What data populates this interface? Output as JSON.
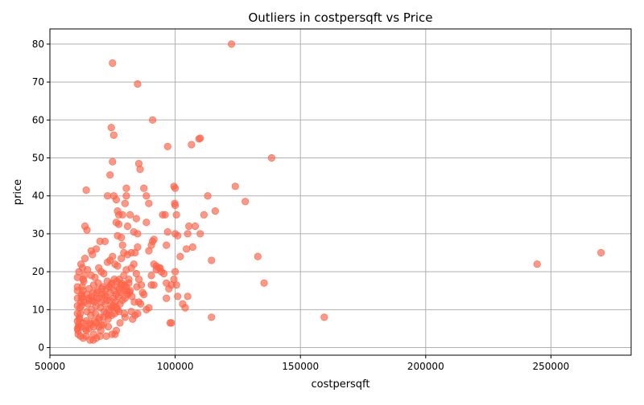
{
  "chart_data": {
    "type": "scatter",
    "title": "Outliers in costpersqft vs Price",
    "xlabel": "costpersqft",
    "ylabel": "price",
    "xlim": [
      50000,
      282000
    ],
    "ylim": [
      -2,
      84
    ],
    "xticks": [
      50000,
      100000,
      150000,
      200000,
      250000
    ],
    "yticks": [
      0,
      10,
      20,
      30,
      40,
      50,
      60,
      70,
      80
    ],
    "grid": true,
    "point_color": "#ff6347",
    "series": [
      {
        "points": [
          [
            61200,
            4.5
          ],
          [
            61500,
            6.0
          ],
          [
            61800,
            8.0
          ],
          [
            62000,
            10.5
          ],
          [
            62300,
            12.0
          ],
          [
            62600,
            14.0
          ],
          [
            62900,
            16.0
          ],
          [
            63200,
            18.0
          ],
          [
            61400,
            5.5
          ],
          [
            61700,
            7.5
          ],
          [
            62100,
            9.0
          ],
          [
            62500,
            11.0
          ],
          [
            62800,
            13.5
          ],
          [
            63100,
            15.0
          ],
          [
            63500,
            17.5
          ],
          [
            63800,
            19.0
          ],
          [
            64200,
            5.0
          ],
          [
            64500,
            7.0
          ],
          [
            64800,
            9.5
          ],
          [
            65100,
            11.5
          ],
          [
            65400,
            13.0
          ],
          [
            65700,
            15.5
          ],
          [
            66000,
            6.5
          ],
          [
            66300,
            8.5
          ],
          [
            66600,
            10.0
          ],
          [
            66900,
            12.5
          ],
          [
            67200,
            14.5
          ],
          [
            67500,
            16.5
          ],
          [
            67800,
            7.0
          ],
          [
            68100,
            9.0
          ],
          [
            68400,
            11.0
          ],
          [
            68700,
            13.0
          ],
          [
            69000,
            15.0
          ],
          [
            69300,
            17.0
          ],
          [
            69600,
            5.5
          ],
          [
            69900,
            8.0
          ],
          [
            70200,
            10.5
          ],
          [
            70500,
            12.0
          ],
          [
            70800,
            14.0
          ],
          [
            71100,
            16.0
          ],
          [
            71400,
            6.0
          ],
          [
            71700,
            9.5
          ],
          [
            72000,
            11.5
          ],
          [
            72300,
            13.5
          ],
          [
            72600,
            15.5
          ],
          [
            72900,
            17.5
          ],
          [
            73200,
            7.5
          ],
          [
            73500,
            10.0
          ],
          [
            73800,
            12.5
          ],
          [
            74100,
            14.5
          ],
          [
            74400,
            16.5
          ],
          [
            74700,
            8.5
          ],
          [
            75000,
            11.0
          ],
          [
            75300,
            13.0
          ],
          [
            75600,
            15.0
          ],
          [
            75900,
            9.0
          ],
          [
            76200,
            12.0
          ],
          [
            76500,
            14.0
          ],
          [
            76800,
            16.0
          ],
          [
            77100,
            10.0
          ],
          [
            77400,
            13.5
          ],
          [
            77700,
            15.5
          ],
          [
            78000,
            11.5
          ],
          [
            78300,
            14.5
          ],
          [
            78600,
            16.5
          ],
          [
            79000,
            12.5
          ],
          [
            79500,
            15.0
          ],
          [
            80000,
            13.0
          ],
          [
            80500,
            16.0
          ],
          [
            81000,
            14.0
          ],
          [
            81500,
            17.0
          ],
          [
            82000,
            15.0
          ],
          [
            61300,
            3.5
          ],
          [
            62200,
            3.0
          ],
          [
            63300,
            2.5
          ],
          [
            64500,
            3.0
          ],
          [
            66000,
            2.0
          ],
          [
            67500,
            3.5
          ],
          [
            68500,
            2.5
          ],
          [
            70000,
            3.0
          ],
          [
            72500,
            3.0
          ],
          [
            74800,
            3.5
          ],
          [
            76500,
            4.5
          ],
          [
            78000,
            6.5
          ],
          [
            80000,
            8.0
          ],
          [
            82500,
            9.5
          ],
          [
            84000,
            8.5
          ],
          [
            85500,
            12.0
          ],
          [
            61600,
            20.0
          ],
          [
            62400,
            22.0
          ],
          [
            63000,
            21.0
          ],
          [
            64000,
            23.5
          ],
          [
            65000,
            20.5
          ],
          [
            66500,
            19.0
          ],
          [
            67000,
            24.5
          ],
          [
            68000,
            18.5
          ],
          [
            69500,
            21.0
          ],
          [
            70500,
            20.0
          ],
          [
            71500,
            19.5
          ],
          [
            73000,
            22.5
          ],
          [
            74000,
            23.0
          ],
          [
            75000,
            24.0
          ],
          [
            76000,
            22.0
          ],
          [
            77000,
            21.5
          ],
          [
            78500,
            23.5
          ],
          [
            79500,
            19.0
          ],
          [
            80500,
            20.5
          ],
          [
            81500,
            18.0
          ],
          [
            82500,
            21.0
          ],
          [
            83500,
            22.0
          ],
          [
            84500,
            19.5
          ],
          [
            85500,
            18.0
          ],
          [
            86500,
            16.5
          ],
          [
            87500,
            14.0
          ],
          [
            88500,
            10.0
          ],
          [
            89500,
            10.5
          ],
          [
            90500,
            16.5
          ],
          [
            91500,
            16.5
          ],
          [
            92500,
            20.5
          ],
          [
            93500,
            21.0
          ],
          [
            94500,
            20.0
          ],
          [
            95500,
            19.5
          ],
          [
            96500,
            17.0
          ],
          [
            97500,
            15.5
          ],
          [
            98500,
            16.5
          ],
          [
            99500,
            18.0
          ],
          [
            100000,
            20.0
          ],
          [
            100500,
            16.5
          ],
          [
            101000,
            13.5
          ],
          [
            103000,
            11.5
          ],
          [
            104000,
            10.5
          ],
          [
            105000,
            13.5
          ],
          [
            96500,
            13.0
          ],
          [
            98000,
            6.5
          ],
          [
            98500,
            6.5
          ],
          [
            114500,
            8.0
          ],
          [
            159500,
            8.0
          ],
          [
            64500,
            41.5
          ],
          [
            72000,
            28.0
          ],
          [
            70000,
            28.0
          ],
          [
            68500,
            26.0
          ],
          [
            64800,
            31.0
          ],
          [
            64000,
            32.0
          ],
          [
            66500,
            25.5
          ],
          [
            74000,
            45.5
          ],
          [
            74500,
            58.0
          ],
          [
            75500,
            56.0
          ],
          [
            75000,
            49.0
          ],
          [
            75000,
            75.0
          ],
          [
            73000,
            40.0
          ],
          [
            75500,
            40.0
          ],
          [
            76500,
            39.0
          ],
          [
            77000,
            36.0
          ],
          [
            77500,
            35.0
          ],
          [
            79000,
            35.0
          ],
          [
            80000,
            38.0
          ],
          [
            80500,
            40.0
          ],
          [
            80500,
            42.0
          ],
          [
            82000,
            35.0
          ],
          [
            81000,
            32.0
          ],
          [
            76500,
            33.0
          ],
          [
            77500,
            32.5
          ],
          [
            78500,
            29.0
          ],
          [
            79000,
            27.0
          ],
          [
            77000,
            29.5
          ],
          [
            79500,
            25.0
          ],
          [
            81000,
            24.5
          ],
          [
            82500,
            25.0
          ],
          [
            84000,
            25.0
          ],
          [
            85000,
            26.5
          ],
          [
            85000,
            30.0
          ],
          [
            83500,
            30.5
          ],
          [
            84500,
            34.0
          ],
          [
            85500,
            48.5
          ],
          [
            86000,
            47.0
          ],
          [
            87500,
            42.0
          ],
          [
            88500,
            40.0
          ],
          [
            88500,
            33.0
          ],
          [
            89500,
            38.0
          ],
          [
            90500,
            27.0
          ],
          [
            91000,
            28.0
          ],
          [
            91500,
            28.5
          ],
          [
            89500,
            25.5
          ],
          [
            90500,
            19.0
          ],
          [
            91500,
            22.0
          ],
          [
            92500,
            21.5
          ],
          [
            94000,
            21.0
          ],
          [
            95000,
            35.0
          ],
          [
            96000,
            35.0
          ],
          [
            96500,
            27.0
          ],
          [
            97000,
            30.5
          ],
          [
            100000,
            30.0
          ],
          [
            99500,
            42.5
          ],
          [
            100000,
            42.0
          ],
          [
            100000,
            37.5
          ],
          [
            99800,
            38.0
          ],
          [
            100500,
            35.0
          ],
          [
            101000,
            29.5
          ],
          [
            102000,
            24.0
          ],
          [
            104500,
            26.0
          ],
          [
            105000,
            30.0
          ],
          [
            105500,
            32.0
          ],
          [
            107000,
            26.5
          ],
          [
            108000,
            32.0
          ],
          [
            110000,
            30.0
          ],
          [
            111500,
            35.0
          ],
          [
            113000,
            40.0
          ],
          [
            114500,
            23.0
          ],
          [
            116000,
            36.0
          ],
          [
            109500,
            55.0
          ],
          [
            110000,
            55.2
          ],
          [
            106500,
            53.5
          ],
          [
            97000,
            53.0
          ],
          [
            91000,
            60.0
          ],
          [
            85000,
            69.5
          ],
          [
            122500,
            80.0
          ],
          [
            124000,
            42.5
          ],
          [
            128000,
            38.5
          ],
          [
            133000,
            24.0
          ],
          [
            135500,
            17.0
          ],
          [
            138500,
            50.0
          ],
          [
            244500,
            22.0
          ],
          [
            270000,
            25.0
          ],
          [
            61000,
            5.0
          ],
          [
            61000,
            7.0
          ],
          [
            61000,
            9.0
          ],
          [
            61000,
            11.0
          ],
          [
            61000,
            13.0
          ],
          [
            61000,
            15.0
          ],
          [
            61000,
            16.0
          ],
          [
            61000,
            18.5
          ],
          [
            62500,
            5.5
          ],
          [
            63500,
            6.5
          ],
          [
            64500,
            4.5
          ],
          [
            65500,
            5.0
          ],
          [
            66500,
            6.0
          ],
          [
            67500,
            5.5
          ],
          [
            68500,
            6.5
          ],
          [
            69500,
            7.5
          ],
          [
            70500,
            6.0
          ],
          [
            71500,
            8.0
          ],
          [
            72500,
            9.0
          ],
          [
            73500,
            8.5
          ],
          [
            74500,
            10.5
          ],
          [
            75500,
            11.0
          ],
          [
            76500,
            10.5
          ],
          [
            77500,
            9.5
          ],
          [
            62700,
            13.0
          ],
          [
            63700,
            12.0
          ],
          [
            64700,
            14.0
          ],
          [
            65700,
            12.5
          ],
          [
            66700,
            13.5
          ],
          [
            67700,
            12.0
          ],
          [
            68700,
            14.5
          ],
          [
            69700,
            13.0
          ],
          [
            70700,
            15.5
          ],
          [
            71700,
            14.0
          ],
          [
            72700,
            12.5
          ],
          [
            73700,
            16.0
          ],
          [
            74700,
            17.0
          ],
          [
            75700,
            18.0
          ],
          [
            76700,
            17.5
          ],
          [
            77700,
            18.0
          ],
          [
            78700,
            17.0
          ],
          [
            79700,
            16.5
          ],
          [
            80700,
            15.0
          ],
          [
            81700,
            14.5
          ],
          [
            82700,
            13.5
          ],
          [
            83700,
            12.0
          ],
          [
            84700,
            16.0
          ],
          [
            86200,
            11.5
          ],
          [
            87000,
            14.5
          ],
          [
            76000,
            3.5
          ],
          [
            67300,
            2.0
          ],
          [
            70300,
            4.5
          ],
          [
            73300,
            5.5
          ],
          [
            79700,
            9.0
          ],
          [
            83000,
            7.5
          ],
          [
            85000,
            9.0
          ]
        ]
      }
    ]
  }
}
